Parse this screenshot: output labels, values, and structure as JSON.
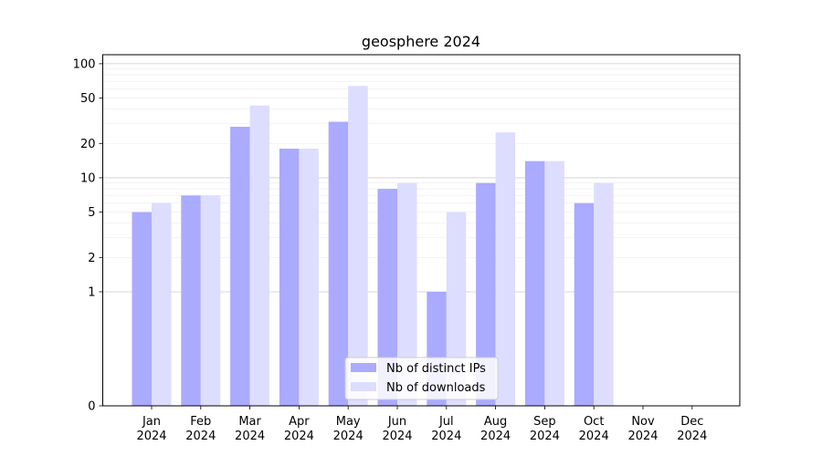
{
  "chart_data": {
    "type": "bar",
    "title": "geosphere 2024",
    "xlabel": "",
    "ylabel": "",
    "y_scale": "symlog",
    "ylim": [
      0,
      120
    ],
    "y_ticks": [
      0,
      1,
      2,
      5,
      10,
      20,
      50,
      100
    ],
    "grid": true,
    "legend_position": "bottom-center",
    "categories": [
      [
        "Jan",
        "2024"
      ],
      [
        "Feb",
        "2024"
      ],
      [
        "Mar",
        "2024"
      ],
      [
        "Apr",
        "2024"
      ],
      [
        "May",
        "2024"
      ],
      [
        "Jun",
        "2024"
      ],
      [
        "Jul",
        "2024"
      ],
      [
        "Aug",
        "2024"
      ],
      [
        "Sep",
        "2024"
      ],
      [
        "Oct",
        "2024"
      ],
      [
        "Nov",
        "2024"
      ],
      [
        "Dec",
        "2024"
      ]
    ],
    "series": [
      {
        "name": "Nb of distinct IPs",
        "color": "#aaaaff",
        "values": [
          5,
          7,
          28,
          18,
          31,
          8,
          1,
          9,
          14,
          6,
          0,
          0
        ]
      },
      {
        "name": "Nb of downloads",
        "color": "#ddddff",
        "values": [
          6,
          7,
          43,
          18,
          64,
          9,
          5,
          25,
          14,
          9,
          0,
          0
        ]
      }
    ]
  }
}
